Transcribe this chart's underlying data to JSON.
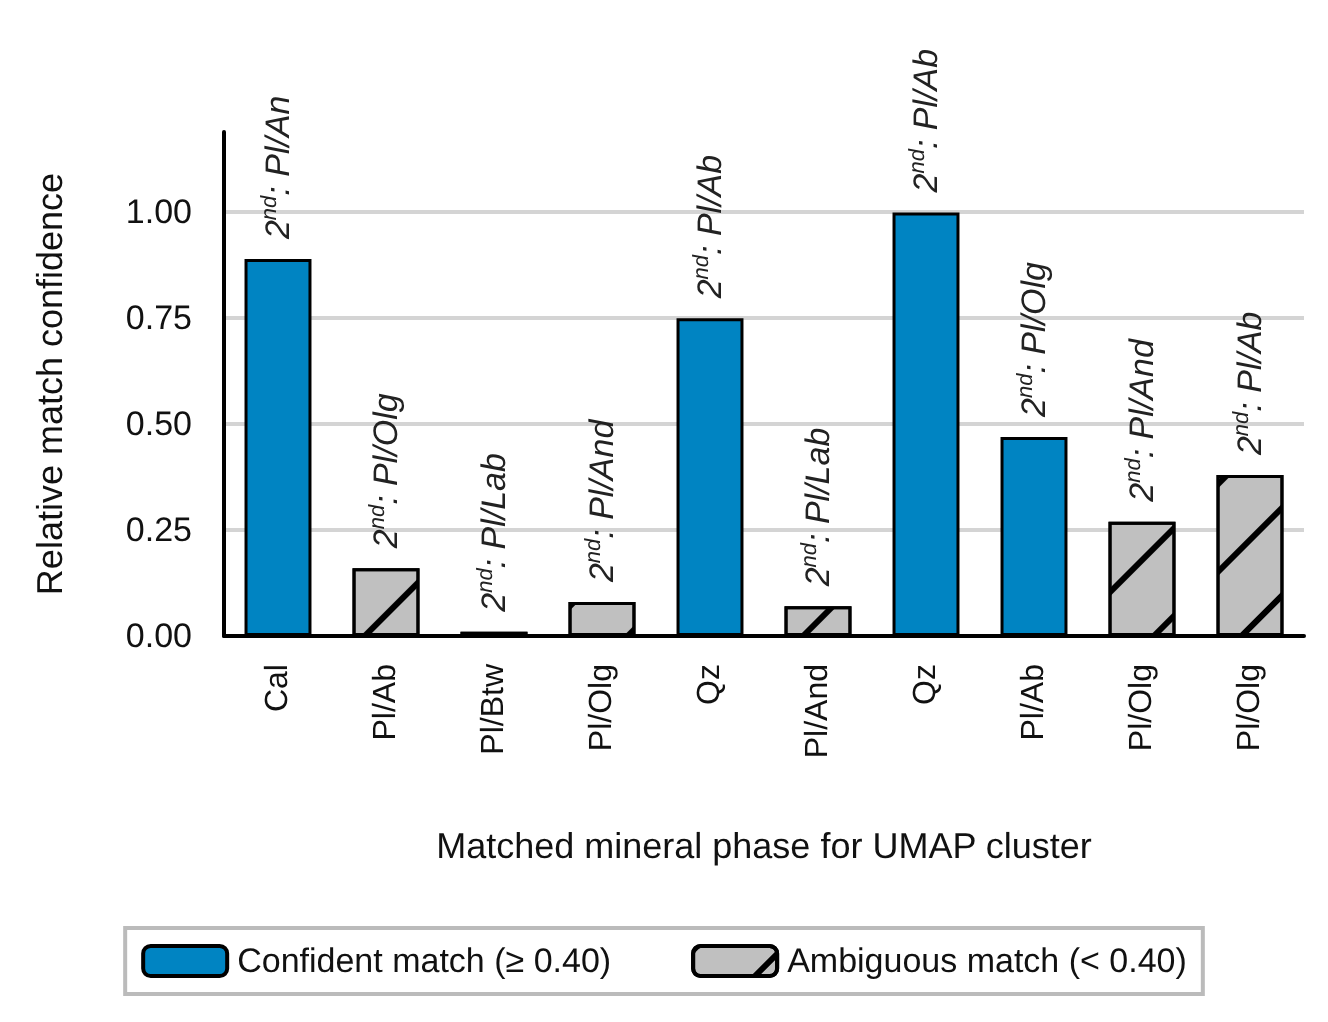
{
  "chart_data": {
    "type": "bar",
    "xlabel": "Matched mineral phase for UMAP cluster",
    "ylabel": "Relative match confidence",
    "categories": [
      "Cal",
      "Pl/Ab",
      "Pl/Btw",
      "Pl/Olg",
      "Qz",
      "Pl/And",
      "Qz",
      "Pl/Ab",
      "Pl/Olg",
      "Pl/Olg"
    ],
    "stacked": true,
    "series": [
      {
        "name": "Confident match (≥ 0.40)",
        "color": "#0084c2",
        "values": [
          0.89,
          null,
          null,
          null,
          0.75,
          null,
          1.0,
          0.47,
          null,
          null
        ]
      },
      {
        "name": "Ambiguous match (< 0.40)",
        "color": "#c0c0c0",
        "values": [
          null,
          0.16,
          0.01,
          0.08,
          null,
          0.07,
          null,
          null,
          0.27,
          0.38
        ]
      }
    ],
    "ylim": [
      0,
      1.19
    ],
    "yticks": [
      {
        "value": 0,
        "label": "0.00"
      },
      {
        "value": 0.25,
        "label": "0.25"
      },
      {
        "value": 0.5,
        "label": "0.50"
      },
      {
        "value": 0.75,
        "label": "0.75"
      },
      {
        "value": 1,
        "label": "1.00"
      }
    ],
    "grid": "y",
    "legend": "bottom",
    "annotations": [
      "2$^{nd}$: Pl/An",
      "2$^{nd}$: Pl/Olg",
      "2$^{nd}$: Pl/Lab",
      "2$^{nd}$: Pl/And",
      "2$^{nd}$: Pl/Ab",
      "2$^{nd}$: Pl/Lab",
      "2$^{nd}$: Pl/Ab",
      "2$^{nd}$: Pl/Olg",
      "2$^{nd}$: Pl/And",
      "2$^{nd}$: Pl/Ab"
    ]
  }
}
